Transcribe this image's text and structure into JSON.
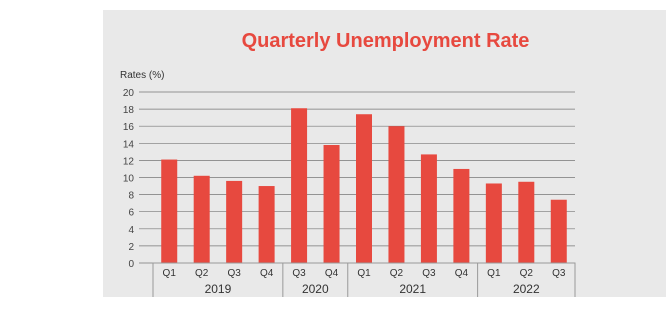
{
  "chart_data": {
    "type": "bar",
    "title": "Quarterly Unemployment Rate",
    "ylabel": "Rates (%)",
    "xlabel": "",
    "ylim": [
      0,
      20
    ],
    "yticks": [
      0,
      2,
      4,
      6,
      8,
      10,
      12,
      14,
      16,
      18,
      20
    ],
    "categories": [
      "Q1",
      "Q2",
      "Q3",
      "Q4",
      "Q3",
      "Q4",
      "Q1",
      "Q2",
      "Q3",
      "Q4",
      "Q1",
      "Q2",
      "Q3"
    ],
    "values": [
      12.1,
      10.2,
      9.6,
      9.0,
      18.1,
      13.8,
      17.4,
      16.0,
      12.7,
      11.0,
      9.3,
      9.5,
      7.4
    ],
    "groups": [
      {
        "label": "2019",
        "count": 4
      },
      {
        "label": "2020",
        "count": 2
      },
      {
        "label": "2021",
        "count": 4
      },
      {
        "label": "2022",
        "count": 3
      }
    ],
    "grid": true,
    "legend": "none"
  },
  "colors": {
    "bar": "#e7493f",
    "title": "#e7493f",
    "grid": "#777777",
    "panel": "#e9e9e9",
    "axis_box": "#999999"
  }
}
